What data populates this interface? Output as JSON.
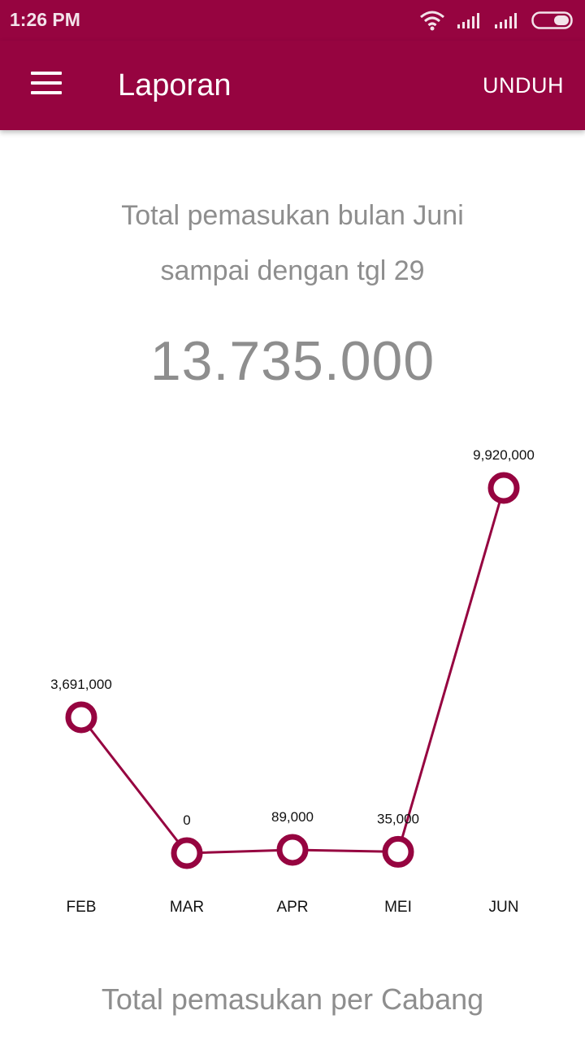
{
  "status_bar": {
    "time": "1:26 PM",
    "icons": [
      "wifi-icon",
      "signal-icon",
      "signal-icon",
      "battery-icon"
    ]
  },
  "app_bar": {
    "menu_icon": "menu-icon",
    "title": "Laporan",
    "download_label": "UNDUH",
    "color": "#960440"
  },
  "summary": {
    "line1": "Total pemasukan bulan Juni",
    "line2": "sampai dengan tgl 29",
    "total": "13.735.000"
  },
  "chart_data": {
    "type": "line",
    "categories": [
      "FEB",
      "MAR",
      "APR",
      "MEI",
      "JUN"
    ],
    "values": [
      3691000,
      0,
      89000,
      35000,
      9920000
    ],
    "value_labels": [
      "3,691,000",
      "0",
      "89,000",
      "35,000",
      "9,920,000"
    ],
    "color": "#960440",
    "grid": false,
    "legend": false
  },
  "section": {
    "title": "Total pemasukan per Cabang"
  }
}
